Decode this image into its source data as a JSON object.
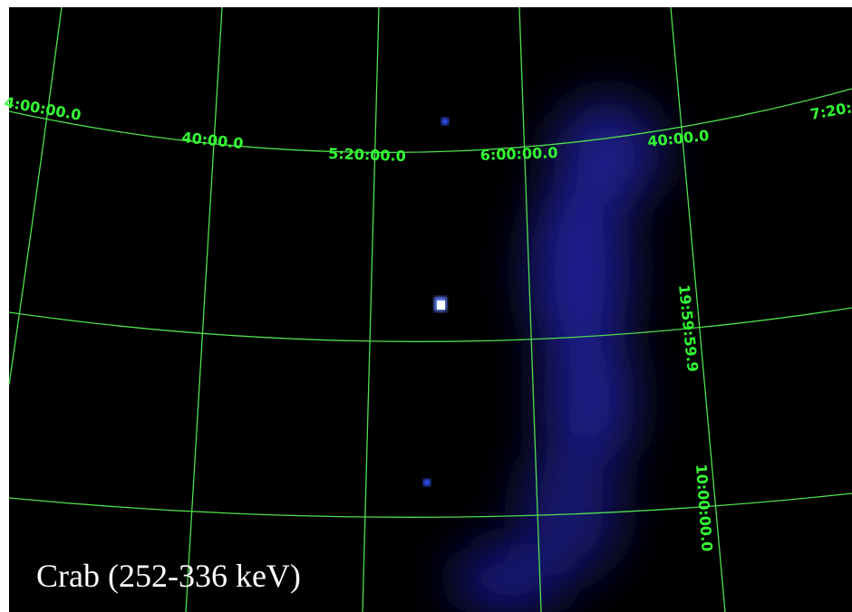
{
  "ra_labels": [
    "4:00:00.0",
    "40:00.0",
    "5:20:00.0",
    "6:00:00.0",
    "40:00.0",
    "7:20:"
  ],
  "dec_labels": [
    "19:59:59.9",
    "10:00:00.0"
  ],
  "caption": "Crab (252-336 keV)"
}
